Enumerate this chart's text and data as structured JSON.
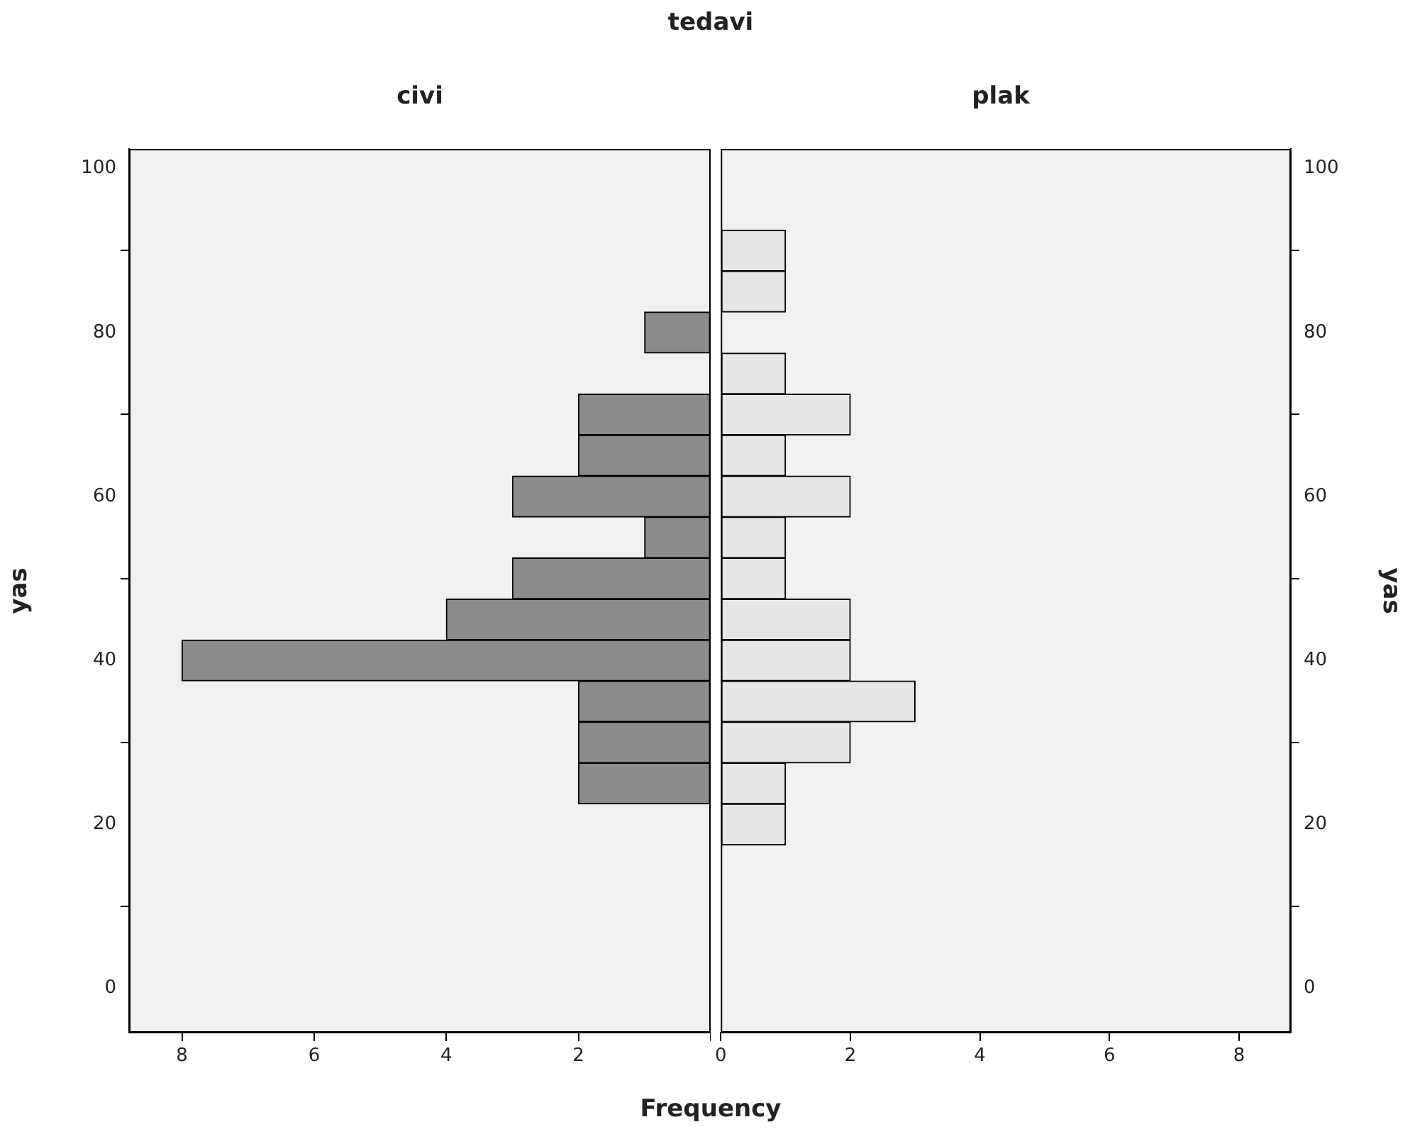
{
  "chart_data": [
    {
      "type": "histogram",
      "title": "civi",
      "annotations": [
        "tedavi"
      ],
      "xlabel": "Frequency",
      "ylabel": "yas",
      "orientation": "horizontal",
      "bins": [
        17.5,
        22.5,
        27.5,
        32.5,
        37.5,
        42.5,
        47.5,
        52.5,
        57.5,
        62.5,
        67.5,
        72.5,
        77.5,
        82.5,
        87.5,
        92.5
      ],
      "values": [
        0,
        2,
        2,
        2,
        8,
        4,
        3,
        1,
        3,
        2,
        2,
        0,
        1,
        0,
        0
      ],
      "color": "#8c8c8c",
      "xlim": [
        8.8,
        0
      ],
      "xticks": [
        {
          "value": 0,
          "label": null
        },
        2,
        4,
        6,
        8
      ],
      "ylim": [
        -5.4,
        102.4
      ],
      "yticks": [
        0,
        20,
        40,
        60,
        80,
        100
      ]
    },
    {
      "type": "histogram",
      "title": "plak",
      "ylabel": "yas",
      "orientation": "horizontal",
      "bins": [
        17.5,
        22.5,
        27.5,
        32.5,
        37.5,
        42.5,
        47.5,
        52.5,
        57.5,
        62.5,
        67.5,
        72.5,
        77.5,
        82.5,
        87.5,
        92.5
      ],
      "values": [
        1,
        1,
        2,
        3,
        2,
        2,
        1,
        1,
        2,
        1,
        2,
        1,
        0,
        1,
        1
      ],
      "color": "#e6e6e6",
      "xlim": [
        0,
        8.8
      ],
      "xticks": [
        0,
        2,
        4,
        6,
        8
      ],
      "ylim": [
        -5.4,
        102.4
      ],
      "yticks": [
        0,
        20,
        40,
        60,
        80,
        100
      ]
    }
  ]
}
